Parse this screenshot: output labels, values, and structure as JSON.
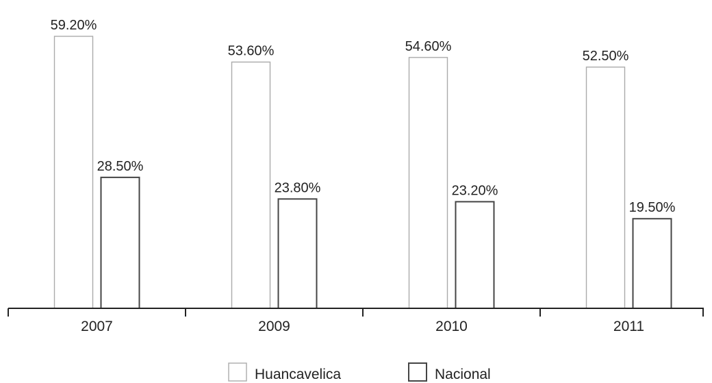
{
  "chart_data": {
    "type": "bar",
    "title": "",
    "xlabel": "",
    "ylabel": "",
    "categories": [
      "2007",
      "2009",
      "2010",
      "2011"
    ],
    "series": [
      {
        "name": "Huancavelica",
        "values": [
          59.2,
          53.6,
          54.6,
          52.5
        ],
        "labels": [
          "59.20%",
          "53.60%",
          "54.60%",
          "52.50%"
        ]
      },
      {
        "name": "Nacional",
        "values": [
          28.5,
          23.8,
          23.2,
          19.5
        ],
        "labels": [
          "28.50%",
          "23.80%",
          "23.20%",
          "19.50%"
        ]
      }
    ],
    "ylim": [
      0,
      70
    ],
    "grid": false,
    "legend_position": "bottom-center",
    "bar_fill": "#ffffff",
    "series_colors": [
      "#aaaaaa",
      "#444444"
    ],
    "axis_color": "#222222"
  }
}
